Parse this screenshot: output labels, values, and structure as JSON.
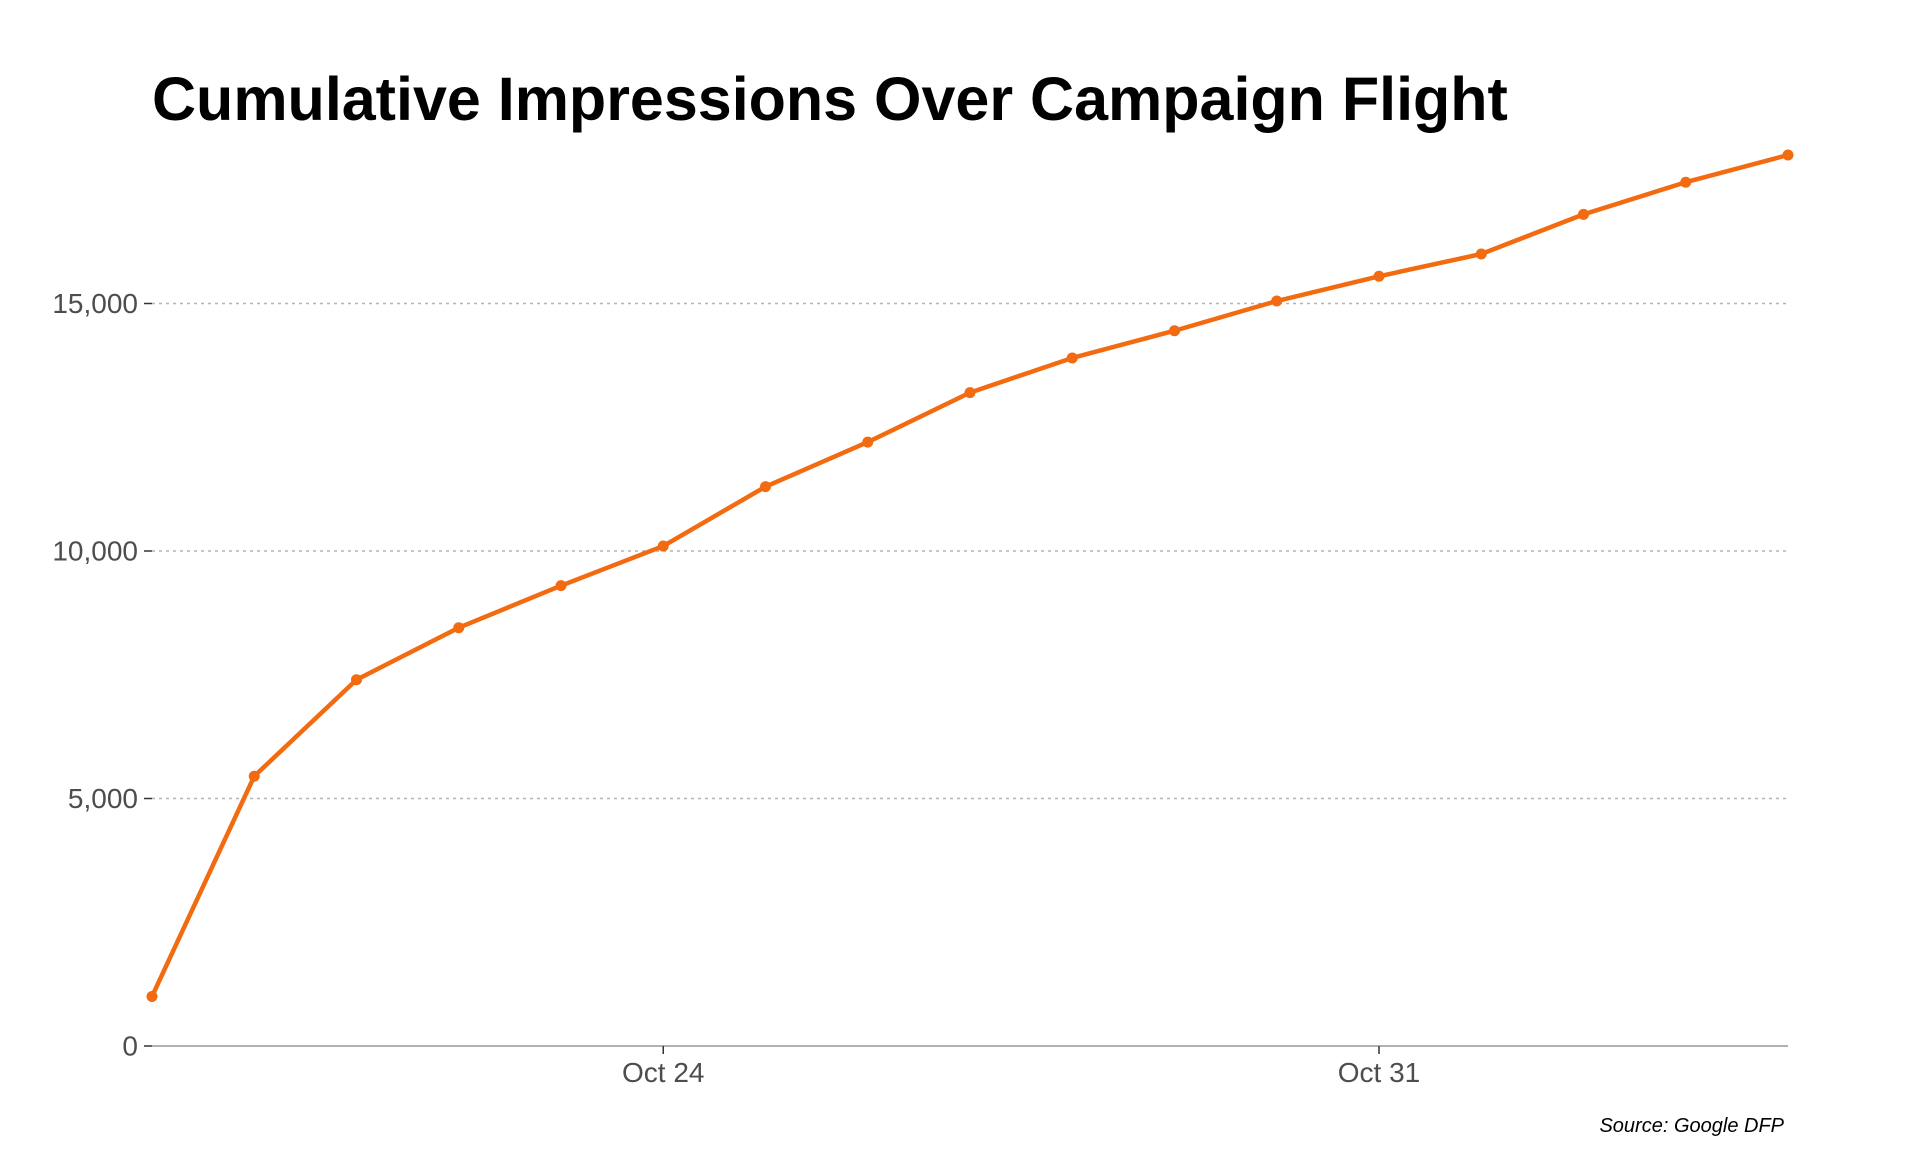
{
  "chart_data": {
    "type": "line",
    "title": "Cumulative Impressions Over Campaign Flight",
    "source": "Source: Google DFP",
    "xlabel": "",
    "ylabel": "",
    "x": [
      "Oct 19",
      "Oct 20",
      "Oct 21",
      "Oct 22",
      "Oct 23",
      "Oct 24",
      "Oct 25",
      "Oct 26",
      "Oct 27",
      "Oct 28",
      "Oct 29",
      "Oct 30",
      "Oct 31",
      "Nov 1",
      "Nov 2",
      "Nov 3",
      "Nov 4"
    ],
    "series": [
      {
        "values": [
          1000,
          5450,
          7400,
          8450,
          9300,
          10100,
          11300,
          12200,
          13200,
          13900,
          14450,
          15050,
          15550,
          16000,
          16800,
          17450,
          18000
        ]
      }
    ],
    "x_ticks": [
      {
        "date": "Oct 24",
        "label": "Oct 24"
      },
      {
        "date": "Oct 31",
        "label": "Oct 31"
      }
    ],
    "y_ticks": [
      {
        "value": 0,
        "label": "0"
      },
      {
        "value": 5000,
        "label": "5,000"
      },
      {
        "value": 10000,
        "label": "10,000"
      },
      {
        "value": 15000,
        "label": "15,000"
      }
    ],
    "ylim": [
      0,
      18000
    ],
    "grid": "horizontal dotted",
    "legend": "none",
    "line_color": "#f26b10",
    "grid_color": "#b3b3b3",
    "axis_color": "#999999"
  }
}
